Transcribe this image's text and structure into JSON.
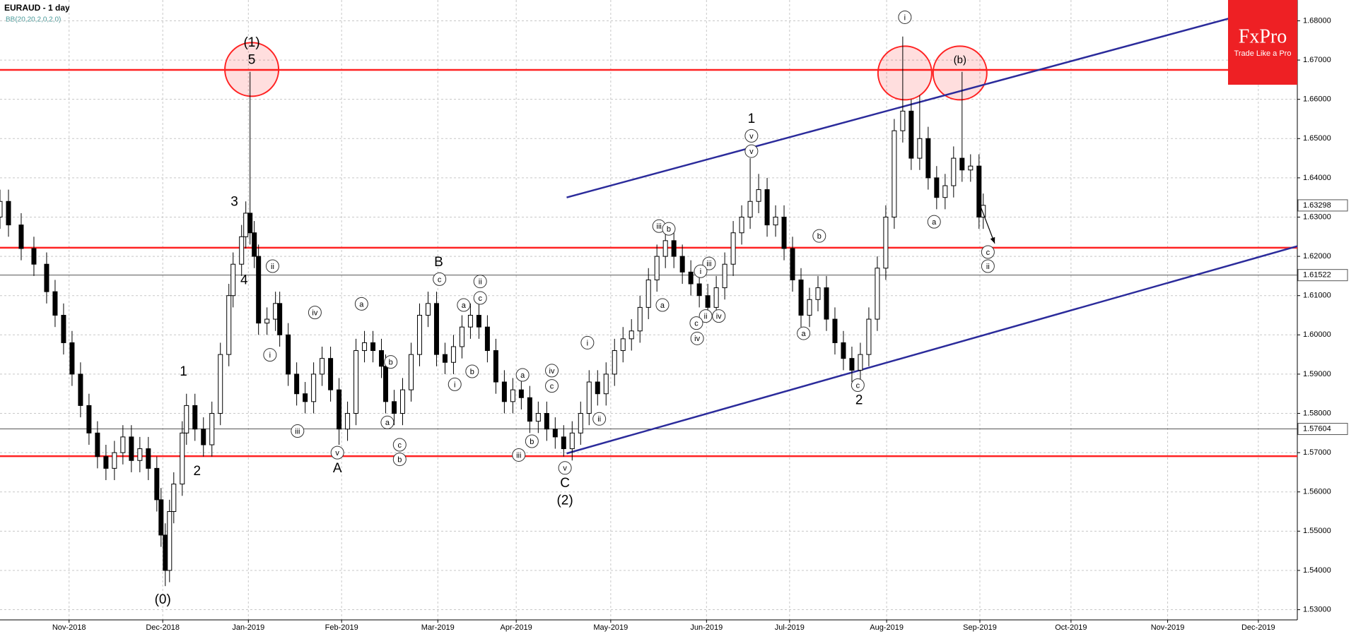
{
  "chart_data": {
    "type": "candlestick",
    "title": "EURAUD - 1 day",
    "subtitle": "BB(20,20,2,0,2,0)",
    "x": [
      0,
      2,
      5,
      8,
      11,
      13,
      15,
      17,
      19,
      21,
      23,
      25,
      27,
      29,
      31,
      33,
      35,
      37,
      38,
      39,
      40,
      41,
      43,
      44,
      46,
      48,
      50,
      52,
      54,
      55,
      57,
      58,
      59,
      60,
      61,
      63,
      65,
      66,
      68,
      70,
      72,
      74,
      76,
      78,
      80,
      82,
      84,
      86,
      88,
      90,
      91,
      93,
      95,
      97,
      99,
      101,
      103,
      105,
      107,
      109,
      111,
      113,
      115,
      117,
      119,
      121,
      123,
      125,
      127,
      129,
      131,
      133,
      135,
      137,
      139,
      141,
      143,
      145,
      147,
      149,
      151,
      153,
      155,
      157,
      159,
      161,
      163,
      165,
      167,
      169,
      171,
      173,
      175,
      177,
      179,
      181,
      183,
      185,
      187,
      189,
      191,
      193,
      195,
      197,
      199,
      201,
      203,
      205,
      207,
      209,
      211,
      213,
      215,
      217,
      219,
      221,
      223,
      225,
      227,
      229,
      231,
      232
    ],
    "open": [
      1.63,
      1.634,
      1.628,
      1.622,
      1.618,
      1.611,
      1.605,
      1.598,
      1.59,
      1.582,
      1.575,
      1.569,
      1.566,
      1.57,
      1.574,
      1.568,
      1.571,
      1.566,
      1.558,
      1.549,
      1.54,
      1.555,
      1.562,
      1.575,
      1.582,
      1.576,
      1.572,
      1.58,
      1.595,
      1.61,
      1.618,
      1.625,
      1.631,
      1.626,
      1.62,
      1.603,
      1.604,
      1.608,
      1.6,
      1.59,
      1.585,
      1.583,
      1.59,
      1.594,
      1.586,
      1.576,
      1.58,
      1.596,
      1.598,
      1.596,
      1.592,
      1.583,
      1.58,
      1.586,
      1.595,
      1.605,
      1.608,
      1.595,
      1.593,
      1.597,
      1.602,
      1.605,
      1.602,
      1.596,
      1.588,
      1.583,
      1.586,
      1.584,
      1.578,
      1.58,
      1.576,
      1.574,
      1.571,
      1.575,
      1.58,
      1.588,
      1.585,
      1.59,
      1.596,
      1.599,
      1.601,
      1.607,
      1.614,
      1.62,
      1.624,
      1.62,
      1.616,
      1.613,
      1.61,
      1.607,
      1.612,
      1.618,
      1.626,
      1.63,
      1.634,
      1.637,
      1.628,
      1.63,
      1.622,
      1.614,
      1.605,
      1.609,
      1.612,
      1.604,
      1.598,
      1.594,
      1.591,
      1.595,
      1.604,
      1.617,
      1.63,
      1.652,
      1.657,
      1.645,
      1.65,
      1.64,
      1.635,
      1.638,
      1.645,
      1.642,
      1.643,
      1.63
    ],
    "high": [
      1.637,
      1.637,
      1.631,
      1.625,
      1.621,
      1.614,
      1.608,
      1.601,
      1.593,
      1.585,
      1.578,
      1.572,
      1.573,
      1.577,
      1.577,
      1.574,
      1.574,
      1.569,
      1.561,
      1.552,
      1.558,
      1.565,
      1.578,
      1.585,
      1.585,
      1.579,
      1.583,
      1.598,
      1.613,
      1.621,
      1.628,
      1.634,
      1.667,
      1.629,
      1.623,
      1.607,
      1.611,
      1.611,
      1.603,
      1.593,
      1.588,
      1.593,
      1.597,
      1.597,
      1.589,
      1.583,
      1.599,
      1.601,
      1.601,
      1.599,
      1.595,
      1.586,
      1.589,
      1.598,
      1.608,
      1.611,
      1.611,
      1.598,
      1.6,
      1.605,
      1.608,
      1.608,
      1.605,
      1.599,
      1.591,
      1.589,
      1.589,
      1.587,
      1.583,
      1.583,
      1.579,
      1.577,
      1.578,
      1.583,
      1.591,
      1.591,
      1.593,
      1.599,
      1.602,
      1.604,
      1.61,
      1.617,
      1.623,
      1.627,
      1.627,
      1.623,
      1.619,
      1.616,
      1.613,
      1.615,
      1.621,
      1.629,
      1.633,
      1.645,
      1.641,
      1.64,
      1.633,
      1.633,
      1.625,
      1.617,
      1.612,
      1.615,
      1.615,
      1.607,
      1.601,
      1.597,
      1.598,
      1.607,
      1.62,
      1.633,
      1.655,
      1.676,
      1.66,
      1.661,
      1.653,
      1.643,
      1.641,
      1.648,
      1.667,
      1.646,
      1.646,
      1.636
    ],
    "low": [
      1.627,
      1.625,
      1.619,
      1.615,
      1.608,
      1.602,
      1.595,
      1.587,
      1.579,
      1.572,
      1.566,
      1.563,
      1.563,
      1.567,
      1.565,
      1.565,
      1.563,
      1.555,
      1.546,
      1.536,
      1.537,
      1.552,
      1.559,
      1.572,
      1.573,
      1.569,
      1.569,
      1.577,
      1.592,
      1.607,
      1.615,
      1.622,
      1.623,
      1.617,
      1.6,
      1.6,
      1.601,
      1.597,
      1.587,
      1.582,
      1.58,
      1.58,
      1.587,
      1.583,
      1.572,
      1.573,
      1.577,
      1.593,
      1.593,
      1.589,
      1.58,
      1.577,
      1.577,
      1.583,
      1.592,
      1.602,
      1.592,
      1.59,
      1.59,
      1.594,
      1.599,
      1.599,
      1.593,
      1.585,
      1.58,
      1.58,
      1.581,
      1.575,
      1.575,
      1.573,
      1.571,
      1.569,
      1.568,
      1.572,
      1.577,
      1.582,
      1.582,
      1.587,
      1.593,
      1.596,
      1.598,
      1.604,
      1.611,
      1.617,
      1.617,
      1.613,
      1.61,
      1.607,
      1.604,
      1.604,
      1.609,
      1.615,
      1.623,
      1.627,
      1.631,
      1.625,
      1.625,
      1.619,
      1.611,
      1.602,
      1.602,
      1.606,
      1.601,
      1.595,
      1.591,
      1.588,
      1.588,
      1.592,
      1.601,
      1.614,
      1.627,
      1.649,
      1.642,
      1.642,
      1.637,
      1.632,
      1.632,
      1.635,
      1.639,
      1.639,
      1.627,
      1.627
    ],
    "close": [
      1.634,
      1.628,
      1.622,
      1.618,
      1.611,
      1.605,
      1.598,
      1.59,
      1.582,
      1.575,
      1.569,
      1.566,
      1.57,
      1.574,
      1.568,
      1.571,
      1.566,
      1.558,
      1.549,
      1.54,
      1.555,
      1.562,
      1.575,
      1.582,
      1.576,
      1.572,
      1.58,
      1.595,
      1.61,
      1.618,
      1.625,
      1.631,
      1.626,
      1.62,
      1.603,
      1.604,
      1.608,
      1.6,
      1.59,
      1.585,
      1.583,
      1.59,
      1.594,
      1.586,
      1.576,
      1.58,
      1.596,
      1.598,
      1.596,
      1.592,
      1.583,
      1.58,
      1.586,
      1.595,
      1.605,
      1.608,
      1.595,
      1.593,
      1.597,
      1.602,
      1.605,
      1.602,
      1.596,
      1.588,
      1.583,
      1.586,
      1.584,
      1.578,
      1.58,
      1.576,
      1.574,
      1.571,
      1.575,
      1.58,
      1.588,
      1.585,
      1.59,
      1.596,
      1.599,
      1.601,
      1.607,
      1.614,
      1.62,
      1.624,
      1.62,
      1.616,
      1.613,
      1.61,
      1.607,
      1.612,
      1.618,
      1.626,
      1.63,
      1.634,
      1.637,
      1.628,
      1.63,
      1.622,
      1.614,
      1.605,
      1.609,
      1.612,
      1.604,
      1.598,
      1.594,
      1.591,
      1.595,
      1.604,
      1.617,
      1.63,
      1.652,
      1.657,
      1.645,
      1.65,
      1.64,
      1.635,
      1.638,
      1.645,
      1.642,
      1.643,
      1.63,
      1.633
    ],
    "xlim": [
      0,
      306.1
    ],
    "ylim": [
      1.5274,
      1.6853
    ],
    "xticks": [
      {
        "value": 16.3,
        "label": "Nov-2018"
      },
      {
        "value": 38.4,
        "label": "Dec-2018"
      },
      {
        "value": 58.6,
        "label": "Jan-2019"
      },
      {
        "value": 80.6,
        "label": "Feb-2019"
      },
      {
        "value": 103.3,
        "label": "Mar-2019"
      },
      {
        "value": 121.8,
        "label": "Apr-2019"
      },
      {
        "value": 144.1,
        "label": "May-2019"
      },
      {
        "value": 166.7,
        "label": "Jun-2019"
      },
      {
        "value": 186.3,
        "label": "Jul-2019"
      },
      {
        "value": 209.2,
        "label": "Aug-2019"
      },
      {
        "value": 231.2,
        "label": "Sep-2019"
      },
      {
        "value": 252.7,
        "label": "Oct-2019"
      },
      {
        "value": 275.5,
        "label": "Nov-2019"
      },
      {
        "value": 296.9,
        "label": "Dec-2019"
      }
    ],
    "yticks": [
      {
        "value": 1.53,
        "label": "1.53000"
      },
      {
        "value": 1.54,
        "label": "1.54000"
      },
      {
        "value": 1.55,
        "label": "1.55000"
      },
      {
        "value": 1.56,
        "label": "1.56000"
      },
      {
        "value": 1.57,
        "label": "1.57000"
      },
      {
        "value": 1.58,
        "label": "1.58000"
      },
      {
        "value": 1.59,
        "label": "1.59000"
      },
      {
        "value": 1.6,
        "label": "1.60000"
      },
      {
        "value": 1.61,
        "label": "1.61000"
      },
      {
        "value": 1.62,
        "label": "1.62000"
      },
      {
        "value": 1.63,
        "label": "1.63000"
      },
      {
        "value": 1.64,
        "label": "1.64000"
      },
      {
        "value": 1.65,
        "label": "1.65000"
      },
      {
        "value": 1.66,
        "label": "1.66000"
      },
      {
        "value": 1.67,
        "label": "1.67000"
      },
      {
        "value": 1.68,
        "label": "1.68000"
      }
    ],
    "grid": true,
    "up_color": "#ffffff",
    "down_color": "#000000",
    "hlines": [
      1.6675,
      1.6222,
      1.5691
    ],
    "hline_color": "#ff2222",
    "price_markers": [
      1.63298,
      1.61522,
      1.57604
    ],
    "trend_lines": [
      {
        "x": [
          133.7,
          306.1
        ],
        "y": [
          1.635,
          1.6853
        ]
      },
      {
        "x": [
          133.7,
          306.1
        ],
        "y": [
          1.5698,
          1.6226
        ]
      }
    ],
    "trend_color": "#2b2b9b",
    "arrow": {
      "x": [
        230.8,
        234.7
      ],
      "y": [
        1.6343,
        1.6233
      ]
    },
    "highlights": [
      {
        "x": 59.4,
        "y": 1.6676
      },
      {
        "x": 213.5,
        "y": 1.6667
      },
      {
        "x": 226.5,
        "y": 1.6667
      }
    ],
    "annotations": [
      {
        "text": "(1)",
        "x": 59.4,
        "y": 1.6743,
        "style": "plain"
      },
      {
        "text": "5",
        "x": 59.4,
        "y": 1.6699,
        "style": "plain"
      },
      {
        "text": "3",
        "x": 55.3,
        "y": 1.6338,
        "style": "plain"
      },
      {
        "text": "4",
        "x": 57.6,
        "y": 1.6138,
        "style": "plain"
      },
      {
        "text": "1",
        "x": 43.3,
        "y": 1.5905,
        "style": "plain"
      },
      {
        "text": "2",
        "x": 46.5,
        "y": 1.5652,
        "style": "plain"
      },
      {
        "text": "(0)",
        "x": 38.4,
        "y": 1.5324,
        "style": "plain"
      },
      {
        "text": "A",
        "x": 79.6,
        "y": 1.5659,
        "style": "plain"
      },
      {
        "text": "B",
        "x": 103.5,
        "y": 1.6184,
        "style": "plain"
      },
      {
        "text": "C",
        "x": 133.3,
        "y": 1.5621,
        "style": "plain"
      },
      {
        "text": "(2)",
        "x": 133.3,
        "y": 1.5577,
        "style": "plain"
      },
      {
        "text": "1",
        "x": 177.3,
        "y": 1.6549,
        "style": "plain"
      },
      {
        "text": "2",
        "x": 202.7,
        "y": 1.5832,
        "style": "plain"
      },
      {
        "text": "(b)",
        "x": 226.5,
        "y": 1.6699,
        "style": "small"
      },
      {
        "text": "ii",
        "x": 64.3,
        "y": 1.6175,
        "style": "circled"
      },
      {
        "text": "i",
        "x": 63.7,
        "y": 1.5949,
        "style": "circled"
      },
      {
        "text": "iii",
        "x": 70.2,
        "y": 1.5755,
        "style": "circled"
      },
      {
        "text": "iv",
        "x": 74.3,
        "y": 1.6057,
        "style": "circled"
      },
      {
        "text": "v",
        "x": 79.6,
        "y": 1.57,
        "style": "circled"
      },
      {
        "text": "a",
        "x": 85.3,
        "y": 1.6079,
        "style": "circled"
      },
      {
        "text": "a",
        "x": 91.4,
        "y": 1.5777,
        "style": "circled"
      },
      {
        "text": "b",
        "x": 92.2,
        "y": 1.5931,
        "style": "circled"
      },
      {
        "text": "c",
        "x": 94.3,
        "y": 1.572,
        "style": "circled"
      },
      {
        "text": "b",
        "x": 94.3,
        "y": 1.5683,
        "style": "circled"
      },
      {
        "text": "c",
        "x": 103.7,
        "y": 1.6142,
        "style": "circled"
      },
      {
        "text": "a",
        "x": 109.4,
        "y": 1.6076,
        "style": "circled"
      },
      {
        "text": "b",
        "x": 111.4,
        "y": 1.5907,
        "style": "circled"
      },
      {
        "text": "i",
        "x": 107.3,
        "y": 1.5874,
        "style": "circled"
      },
      {
        "text": "ii",
        "x": 113.3,
        "y": 1.6136,
        "style": "circled"
      },
      {
        "text": "c",
        "x": 113.3,
        "y": 1.6094,
        "style": "circled"
      },
      {
        "text": "a",
        "x": 123.3,
        "y": 1.5898,
        "style": "circled"
      },
      {
        "text": "iii",
        "x": 122.4,
        "y": 1.5694,
        "style": "circled"
      },
      {
        "text": "b",
        "x": 125.5,
        "y": 1.5729,
        "style": "circled"
      },
      {
        "text": "c",
        "x": 130.2,
        "y": 1.587,
        "style": "circled"
      },
      {
        "text": "iv",
        "x": 130.2,
        "y": 1.5909,
        "style": "circled"
      },
      {
        "text": "v",
        "x": 133.3,
        "y": 1.5661,
        "style": "circled"
      },
      {
        "text": "i",
        "x": 138.6,
        "y": 1.598,
        "style": "circled"
      },
      {
        "text": "ii",
        "x": 141.4,
        "y": 1.5786,
        "style": "circled"
      },
      {
        "text": "iii",
        "x": 155.5,
        "y": 1.6277,
        "style": "circled"
      },
      {
        "text": "b",
        "x": 157.8,
        "y": 1.627,
        "style": "circled"
      },
      {
        "text": "a",
        "x": 156.3,
        "y": 1.6076,
        "style": "circled"
      },
      {
        "text": "iii",
        "x": 167.3,
        "y": 1.6182,
        "style": "circled"
      },
      {
        "text": "i",
        "x": 165.3,
        "y": 1.6162,
        "style": "circled"
      },
      {
        "text": "ii",
        "x": 166.5,
        "y": 1.6048,
        "style": "circled"
      },
      {
        "text": "c",
        "x": 164.3,
        "y": 1.603,
        "style": "circled"
      },
      {
        "text": "iv",
        "x": 164.5,
        "y": 1.5991,
        "style": "circled"
      },
      {
        "text": "iv",
        "x": 169.6,
        "y": 1.6048,
        "style": "circled"
      },
      {
        "text": "v",
        "x": 177.3,
        "y": 1.6507,
        "style": "circled"
      },
      {
        "text": "v",
        "x": 177.3,
        "y": 1.6468,
        "style": "circled"
      },
      {
        "text": "b",
        "x": 193.3,
        "y": 1.6252,
        "style": "circled"
      },
      {
        "text": "a",
        "x": 189.6,
        "y": 1.6004,
        "style": "circled"
      },
      {
        "text": "c",
        "x": 202.4,
        "y": 1.5872,
        "style": "circled"
      },
      {
        "text": "i",
        "x": 213.5,
        "y": 1.6809,
        "style": "circled"
      },
      {
        "text": "a",
        "x": 220.4,
        "y": 1.6288,
        "style": "circled"
      },
      {
        "text": "c",
        "x": 233.1,
        "y": 1.6211,
        "style": "circled"
      },
      {
        "text": "ii",
        "x": 233.1,
        "y": 1.6175,
        "style": "circled"
      }
    ]
  },
  "brand": {
    "name": "FxPro",
    "tagline": "Trade Like a Pro"
  }
}
